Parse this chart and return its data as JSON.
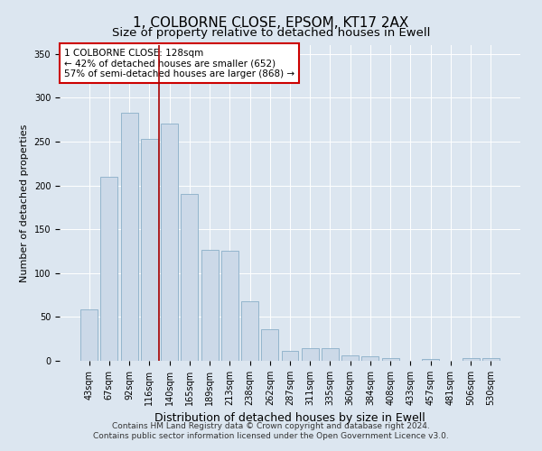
{
  "title": "1, COLBORNE CLOSE, EPSOM, KT17 2AX",
  "subtitle": "Size of property relative to detached houses in Ewell",
  "xlabel": "Distribution of detached houses by size in Ewell",
  "ylabel": "Number of detached properties",
  "bar_labels": [
    "43sqm",
    "67sqm",
    "92sqm",
    "116sqm",
    "140sqm",
    "165sqm",
    "189sqm",
    "213sqm",
    "238sqm",
    "262sqm",
    "287sqm",
    "311sqm",
    "335sqm",
    "360sqm",
    "384sqm",
    "408sqm",
    "433sqm",
    "457sqm",
    "481sqm",
    "506sqm",
    "530sqm"
  ],
  "bar_values": [
    59,
    210,
    283,
    253,
    271,
    190,
    127,
    126,
    68,
    36,
    11,
    14,
    14,
    6,
    5,
    3,
    0,
    2,
    0,
    3,
    3
  ],
  "bar_color": "#ccd9e8",
  "bar_edge_color": "#8aaec8",
  "property_line_x": 3.5,
  "annotation_text": "1 COLBORNE CLOSE: 128sqm\n← 42% of detached houses are smaller (652)\n57% of semi-detached houses are larger (868) →",
  "annotation_box_color": "#ffffff",
  "annotation_box_edge": "#cc0000",
  "vline_color": "#aa0000",
  "bg_color": "#dce6f0",
  "plot_bg_color": "#dce6f0",
  "ylim": [
    0,
    360
  ],
  "yticks": [
    0,
    50,
    100,
    150,
    200,
    250,
    300,
    350
  ],
  "footer": "Contains HM Land Registry data © Crown copyright and database right 2024.\nContains public sector information licensed under the Open Government Licence v3.0.",
  "title_fontsize": 11,
  "subtitle_fontsize": 9.5,
  "xlabel_fontsize": 9,
  "ylabel_fontsize": 8,
  "tick_fontsize": 7,
  "annotation_fontsize": 7.5,
  "footer_fontsize": 6.5
}
